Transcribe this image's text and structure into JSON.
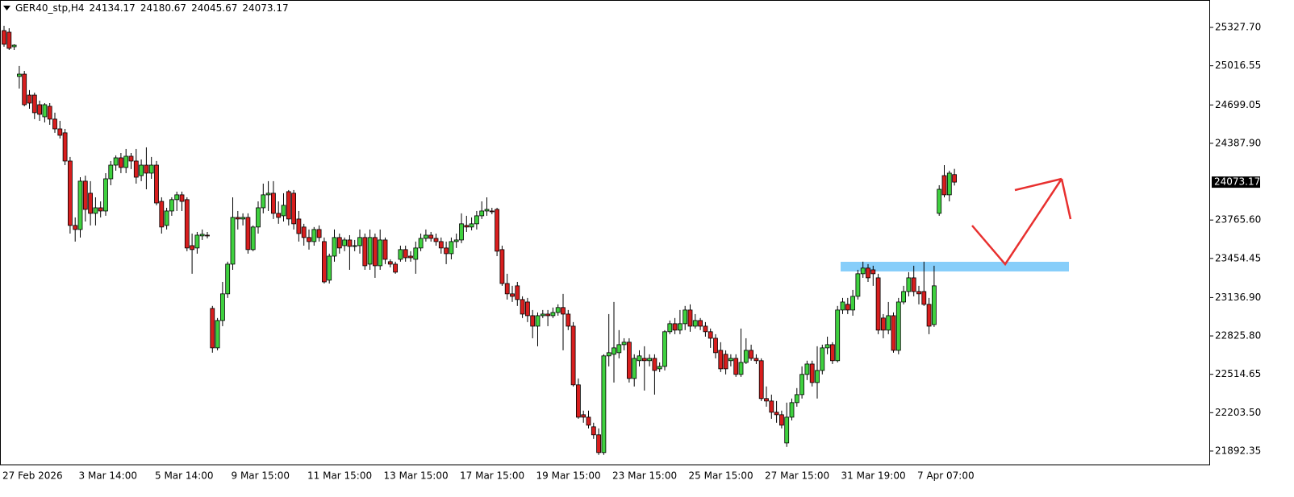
{
  "chart_data": {
    "type": "candlestick",
    "title": "GER40_stp,H4",
    "up_color": "#3fd13f",
    "down_color": "#d81e1e",
    "wick_color": "#000000",
    "ylim": [
      21781,
      25550
    ],
    "yticks": [
      {
        "value": 25327.7,
        "label": "25327.70"
      },
      25016.55,
      24699.05,
      {
        "value": 24387.9,
        "label": "24387.90"
      },
      {
        "value": 23765.6,
        "label": "23765.60"
      },
      23454.45,
      {
        "value": 23136.9,
        "label": "23136.90"
      },
      {
        "value": 22825.8,
        "label": "22825.80"
      },
      22514.65,
      {
        "value": 22203.5,
        "label": "22203.50"
      },
      21892.35
    ],
    "categories": [
      "27 Feb 2026",
      null,
      null,
      null,
      null,
      null,
      null,
      null,
      null,
      null,
      null,
      null,
      null,
      null,
      null,
      "3 Mar 14:00",
      null,
      null,
      null,
      null,
      null,
      null,
      null,
      null,
      null,
      null,
      null,
      null,
      null,
      null,
      "5 Mar 14:00",
      null,
      null,
      null,
      null,
      null,
      null,
      null,
      null,
      null,
      null,
      null,
      null,
      null,
      null,
      "9 Mar 15:00",
      null,
      null,
      null,
      null,
      null,
      null,
      null,
      null,
      null,
      null,
      null,
      null,
      null,
      null,
      "11 Mar 15:00",
      null,
      null,
      null,
      null,
      null,
      null,
      null,
      null,
      null,
      null,
      null,
      null,
      null,
      null,
      "13 Mar 15:00",
      null,
      null,
      null,
      null,
      null,
      null,
      null,
      null,
      null,
      null,
      null,
      null,
      null,
      null,
      "17 Mar 15:00",
      null,
      null,
      null,
      null,
      null,
      null,
      null,
      null,
      null,
      null,
      null,
      null,
      null,
      null,
      "19 Mar 15:00",
      null,
      null,
      null,
      null,
      null,
      null,
      null,
      null,
      null,
      null,
      null,
      null,
      null,
      null,
      "23 Mar 15:00",
      null,
      null,
      null,
      null,
      null,
      null,
      null,
      null,
      null,
      null,
      null,
      null,
      null,
      null,
      "25 Mar 15:00",
      null,
      null,
      null,
      null,
      null,
      null,
      null,
      null,
      null,
      null,
      null,
      null,
      null,
      null,
      "27 Mar 15:00",
      null,
      null,
      null,
      null,
      null,
      null,
      null,
      null,
      null,
      null,
      null,
      null,
      null,
      null,
      "31 Mar 19:00",
      null,
      null,
      null,
      null,
      null,
      null,
      null,
      null,
      null,
      null,
      null,
      null,
      null,
      null,
      "7 Apr 07:00",
      null,
      null,
      null,
      null,
      null,
      null,
      null
    ],
    "values": [
      [
        25302,
        25341,
        25171,
        25191
      ],
      [
        25289,
        25321,
        25145,
        25158
      ],
      [
        25171,
        25191,
        25145,
        25184
      ],
      [
        24930,
        25015,
        24832,
        24949
      ],
      [
        24949,
        24975,
        24688,
        24701
      ],
      [
        24779,
        24819,
        24668,
        24714
      ],
      [
        24779,
        24799,
        24584,
        24636
      ],
      [
        24701,
        24734,
        24570,
        24623
      ],
      [
        24603,
        24714,
        24557,
        24701
      ],
      [
        24688,
        24714,
        24538,
        24584
      ],
      [
        24584,
        24636,
        24473,
        24505
      ],
      [
        24505,
        24570,
        24427,
        24453
      ],
      [
        24473,
        24505,
        24211,
        24244
      ],
      [
        24244,
        24277,
        23656,
        23722
      ],
      [
        23722,
        23787,
        23591,
        23689
      ],
      [
        23689,
        24113,
        23624,
        24081
      ],
      [
        24081,
        24126,
        23754,
        23852
      ],
      [
        23983,
        24081,
        23722,
        23820
      ],
      [
        23820,
        23950,
        23722,
        23865
      ],
      [
        23865,
        23917,
        23787,
        23839
      ],
      [
        23839,
        24146,
        23800,
        24100
      ],
      [
        24100,
        24244,
        24048,
        24211
      ],
      [
        24211,
        24290,
        24166,
        24270
      ],
      [
        24270,
        24309,
        24146,
        24192
      ],
      [
        24192,
        24342,
        24146,
        24283
      ],
      [
        24283,
        24309,
        24179,
        24244
      ],
      [
        24244,
        24342,
        24061,
        24113
      ],
      [
        24126,
        24257,
        24081,
        24211
      ],
      [
        24211,
        24355,
        24015,
        24146
      ],
      [
        24146,
        24277,
        24100,
        24211
      ],
      [
        24211,
        24244,
        23885,
        23904
      ],
      [
        23917,
        23950,
        23656,
        23709
      ],
      [
        23722,
        23865,
        23689,
        23839
      ],
      [
        23839,
        23950,
        23800,
        23931
      ],
      [
        23931,
        23996,
        23839,
        23970
      ],
      [
        23970,
        23996,
        23839,
        23917
      ],
      [
        23931,
        23950,
        23513,
        23539
      ],
      [
        23558,
        23656,
        23330,
        23526
      ],
      [
        23539,
        23669,
        23493,
        23643
      ],
      [
        23637,
        23689,
        23604,
        23650
      ],
      [
        23643,
        23669,
        23617,
        23637
      ],
      [
        23049,
        23069,
        22690,
        22729
      ],
      [
        22729,
        22971,
        22709,
        22951
      ],
      [
        22951,
        23264,
        22905,
        23167
      ],
      [
        23167,
        23428,
        23134,
        23408
      ],
      [
        23408,
        23950,
        23362,
        23787
      ],
      [
        23787,
        23839,
        23689,
        23774
      ],
      [
        23774,
        23820,
        23722,
        23787
      ],
      [
        23787,
        23820,
        23493,
        23526
      ],
      [
        23526,
        23722,
        23513,
        23709
      ],
      [
        23709,
        23917,
        23656,
        23865
      ],
      [
        23865,
        24061,
        23820,
        23970
      ],
      [
        23970,
        24081,
        23839,
        23983
      ],
      [
        23983,
        24081,
        23774,
        23820
      ],
      [
        23820,
        23917,
        23735,
        23787
      ],
      [
        23800,
        23983,
        23754,
        23885
      ],
      [
        23996,
        24009,
        23722,
        23774
      ],
      [
        23983,
        24009,
        23689,
        23735
      ],
      [
        23774,
        23839,
        23591,
        23656
      ],
      [
        23709,
        23735,
        23558,
        23624
      ],
      [
        23624,
        23689,
        23526,
        23591
      ],
      [
        23591,
        23709,
        23558,
        23689
      ],
      [
        23689,
        23722,
        23591,
        23624
      ],
      [
        23591,
        23624,
        23251,
        23264
      ],
      [
        23278,
        23493,
        23251,
        23473
      ],
      [
        23473,
        23689,
        23428,
        23624
      ],
      [
        23624,
        23656,
        23493,
        23539
      ],
      [
        23558,
        23624,
        23513,
        23604
      ],
      [
        23604,
        23643,
        23362,
        23552
      ],
      [
        23552,
        23604,
        23513,
        23558
      ],
      [
        23558,
        23689,
        23493,
        23624
      ],
      [
        23624,
        23656,
        23362,
        23395
      ],
      [
        23408,
        23689,
        23362,
        23624
      ],
      [
        23624,
        23656,
        23297,
        23395
      ],
      [
        23395,
        23689,
        23362,
        23604
      ],
      [
        23604,
        23624,
        23408,
        23447
      ],
      [
        23428,
        23447,
        23382,
        23408
      ],
      [
        23408,
        23428,
        23330,
        23343
      ],
      [
        23447,
        23558,
        23428,
        23526
      ],
      [
        23526,
        23558,
        23428,
        23460
      ],
      [
        23473,
        23513,
        23428,
        23460
      ],
      [
        23447,
        23591,
        23330,
        23539
      ],
      [
        23539,
        23656,
        23513,
        23617
      ],
      [
        23617,
        23689,
        23591,
        23643
      ],
      [
        23643,
        23669,
        23591,
        23617
      ],
      [
        23617,
        23656,
        23558,
        23591
      ],
      [
        23591,
        23624,
        23493,
        23539
      ],
      [
        23539,
        23591,
        23408,
        23493
      ],
      [
        23493,
        23624,
        23447,
        23591
      ],
      [
        23591,
        23656,
        23539,
        23604
      ],
      [
        23604,
        23820,
        23578,
        23735
      ],
      [
        23722,
        23800,
        23669,
        23709
      ],
      [
        23709,
        23787,
        23682,
        23735
      ],
      [
        23735,
        23839,
        23689,
        23800
      ],
      [
        23800,
        23917,
        23774,
        23839
      ],
      [
        23839,
        23950,
        23800,
        23852
      ],
      [
        23839,
        23865,
        23813,
        23833
      ],
      [
        23852,
        23865,
        23473,
        23513
      ],
      [
        23526,
        23558,
        23232,
        23251
      ],
      [
        23251,
        23330,
        23121,
        23167
      ],
      [
        23167,
        23232,
        23101,
        23147
      ],
      [
        23232,
        23264,
        23069,
        23121
      ],
      [
        23121,
        23147,
        22971,
        23003
      ],
      [
        23101,
        23134,
        22938,
        22990
      ],
      [
        22990,
        23036,
        22807,
        22905
      ],
      [
        22905,
        23016,
        22742,
        22990
      ],
      [
        22990,
        23036,
        22971,
        23003
      ],
      [
        23003,
        23036,
        22905,
        22990
      ],
      [
        22990,
        23056,
        22971,
        23016
      ],
      [
        23016,
        23082,
        22990,
        23056
      ],
      [
        23056,
        23167,
        22709,
        23003
      ],
      [
        23003,
        23036,
        22873,
        22905
      ],
      [
        22905,
        22938,
        22416,
        22429
      ],
      [
        22429,
        22481,
        22154,
        22167
      ],
      [
        22187,
        22220,
        22122,
        22167
      ],
      [
        22167,
        22220,
        22076,
        22102
      ],
      [
        22089,
        22122,
        21991,
        22024
      ],
      [
        22024,
        22076,
        21861,
        21880
      ],
      [
        21880,
        22677,
        21861,
        22664
      ],
      [
        22664,
        23003,
        22579,
        22690
      ],
      [
        22677,
        23101,
        22448,
        22729
      ],
      [
        22690,
        22873,
        22644,
        22755
      ],
      [
        22755,
        22807,
        22709,
        22775
      ],
      [
        22775,
        22807,
        22448,
        22481
      ],
      [
        22481,
        22677,
        22416,
        22644
      ],
      [
        22625,
        22709,
        22579,
        22664
      ],
      [
        22644,
        22742,
        22383,
        22625
      ],
      [
        22625,
        22677,
        22579,
        22644
      ],
      [
        22644,
        22677,
        22350,
        22546
      ],
      [
        22559,
        22611,
        22533,
        22579
      ],
      [
        22579,
        22873,
        22546,
        22860
      ],
      [
        22860,
        22951,
        22840,
        22925
      ],
      [
        22925,
        22971,
        22840,
        22873
      ],
      [
        22873,
        23036,
        22840,
        22925
      ],
      [
        22925,
        23069,
        22873,
        23036
      ],
      [
        23036,
        23082,
        22860,
        22905
      ],
      [
        22905,
        23003,
        22886,
        22951
      ],
      [
        22951,
        22971,
        22873,
        22905
      ],
      [
        22905,
        22938,
        22820,
        22860
      ],
      [
        22860,
        22886,
        22729,
        22807
      ],
      [
        22807,
        22840,
        22644,
        22690
      ],
      [
        22709,
        22775,
        22533,
        22559
      ],
      [
        22677,
        22709,
        22514,
        22559
      ],
      [
        22625,
        22677,
        22579,
        22644
      ],
      [
        22644,
        22677,
        22494,
        22514
      ],
      [
        22514,
        22886,
        22494,
        22611
      ],
      [
        22611,
        22807,
        22598,
        22709
      ],
      [
        22709,
        22755,
        22625,
        22644
      ],
      [
        22644,
        22677,
        22598,
        22625
      ],
      [
        22625,
        22644,
        22298,
        22318
      ],
      [
        22318,
        22416,
        22252,
        22298
      ],
      [
        22298,
        22350,
        22154,
        22207
      ],
      [
        22207,
        22298,
        22122,
        22187
      ],
      [
        22187,
        22220,
        22076,
        22102
      ],
      [
        21958,
        22285,
        21926,
        22167
      ],
      [
        22167,
        22318,
        22141,
        22285
      ],
      [
        22285,
        22403,
        22252,
        22350
      ],
      [
        22350,
        22579,
        22318,
        22514
      ],
      [
        22514,
        22625,
        22468,
        22598
      ],
      [
        22598,
        22625,
        22416,
        22448
      ],
      [
        22448,
        22742,
        22318,
        22546
      ],
      [
        22546,
        22755,
        22514,
        22729
      ],
      [
        22729,
        22820,
        22677,
        22755
      ],
      [
        22755,
        22775,
        22598,
        22625
      ],
      [
        22625,
        23069,
        22611,
        23036
      ],
      [
        23036,
        23134,
        23003,
        23101
      ],
      [
        23082,
        23134,
        23003,
        23036
      ],
      [
        23036,
        23199,
        22990,
        23147
      ],
      [
        23147,
        23362,
        23121,
        23330
      ],
      [
        23330,
        23428,
        23297,
        23376
      ],
      [
        23376,
        23408,
        23264,
        23297
      ],
      [
        23362,
        23395,
        23232,
        23330
      ],
      [
        23297,
        23330,
        22840,
        22873
      ],
      [
        22971,
        23003,
        22807,
        22873
      ],
      [
        22873,
        23101,
        22840,
        22990
      ],
      [
        22990,
        23016,
        22690,
        22709
      ],
      [
        22709,
        23134,
        22677,
        23101
      ],
      [
        23101,
        23232,
        23082,
        23186
      ],
      [
        23186,
        23343,
        23147,
        23297
      ],
      [
        23297,
        23395,
        23147,
        23186
      ],
      [
        23186,
        23232,
        23082,
        23167
      ],
      [
        23186,
        23428,
        23069,
        23082
      ],
      [
        23082,
        23134,
        22840,
        22905
      ],
      [
        22918,
        23395,
        22899,
        23232
      ],
      [
        23820,
        24048,
        23800,
        24015
      ],
      [
        24126,
        24211,
        23950,
        23970
      ],
      [
        23970,
        24166,
        23917,
        24146
      ],
      [
        24134.17,
        24180.67,
        24045.67,
        24073.17
      ]
    ]
  }
}
